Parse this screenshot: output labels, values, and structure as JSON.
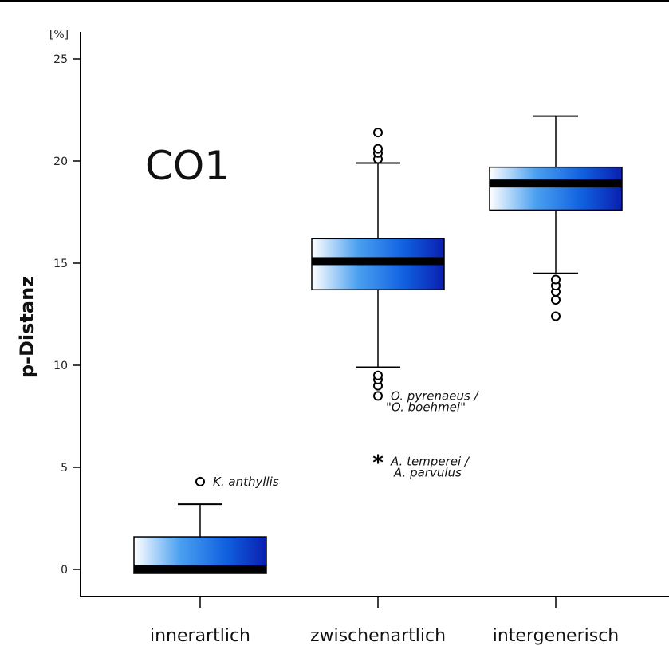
{
  "chart_data": {
    "type": "boxplot",
    "title": "CO1",
    "ylabel": "p-Distanz",
    "yunit": "[%]",
    "ylim": [
      0,
      25
    ],
    "yticks": [
      0,
      5,
      10,
      15,
      20,
      25
    ],
    "categories": [
      "innerartlich",
      "zwischenartlich",
      "intergenerisch"
    ],
    "boxes": [
      {
        "category": "innerartlich",
        "whisker_low": 0,
        "q1": 0,
        "median": 0,
        "q3": 1.6,
        "whisker_high": 3.2,
        "outliers": [
          4.3
        ],
        "extremes": []
      },
      {
        "category": "zwischenartlich",
        "whisker_low": 9.9,
        "q1": 13.7,
        "median": 15.1,
        "q3": 16.2,
        "whisker_high": 19.9,
        "outliers": [
          8.5,
          9.0,
          9.3,
          9.5,
          20.1,
          20.4,
          20.6,
          21.4
        ],
        "extremes": [
          5.3
        ]
      },
      {
        "category": "intergenerisch",
        "whisker_low": 14.5,
        "q1": 17.6,
        "median": 18.9,
        "q3": 19.7,
        "whisker_high": 22.2,
        "outliers": [
          12.4,
          13.2,
          13.6,
          13.9,
          14.2
        ],
        "extremes": []
      }
    ],
    "annotations": [
      {
        "text": [
          "K. anthyllis"
        ],
        "category": "innerartlich",
        "y": 4.3
      },
      {
        "text": [
          "O. pyrenaeus /",
          "\"O. boehmei\""
        ],
        "category": "zwischenartlich",
        "y": 8.5
      },
      {
        "text": [
          "A. temperei /",
          "A. parvulus"
        ],
        "category": "zwischenartlich",
        "y": 5.3
      }
    ],
    "box_gradient": [
      "#ffffff",
      "#0a1fb0"
    ],
    "median_color": "#000000"
  }
}
